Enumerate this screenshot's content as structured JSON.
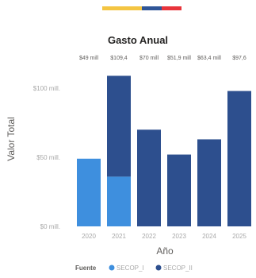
{
  "header": {
    "flag_colors": [
      "#f4c542",
      "#2f5597",
      "#e8343b"
    ],
    "flag_widths": [
      0.5,
      0.25,
      0.25
    ]
  },
  "chart_data": {
    "type": "bar",
    "stacked": true,
    "title": "Gasto Anual",
    "xlabel": "Año",
    "ylabel": "Valor Total",
    "categories": [
      "2020",
      "2021",
      "2022",
      "2023",
      "2024",
      "2025"
    ],
    "series": [
      {
        "name": "SECOP_I",
        "color": "#3e8fde",
        "values": [
          49,
          36,
          0,
          0,
          0,
          0
        ]
      },
      {
        "name": "SECOP_II",
        "color": "#2d4f8e",
        "values": [
          0,
          73,
          70,
          52,
          63,
          98
        ]
      }
    ],
    "data_labels": [
      "$49 mill",
      "$109,4",
      "$70 mill",
      "$51,9 mill",
      "$63,4 mill",
      "$97,6"
    ],
    "yticks": [
      {
        "value": 0,
        "label": "$0 mill."
      },
      {
        "value": 50,
        "label": "$50 mill."
      },
      {
        "value": 100,
        "label": "$100 mill."
      }
    ],
    "ylim": [
      0,
      115
    ],
    "legend": {
      "title": "Fuente",
      "entries": [
        "SECOP_I",
        "SECOP_II"
      ],
      "position": "bottom"
    },
    "grid": false
  }
}
